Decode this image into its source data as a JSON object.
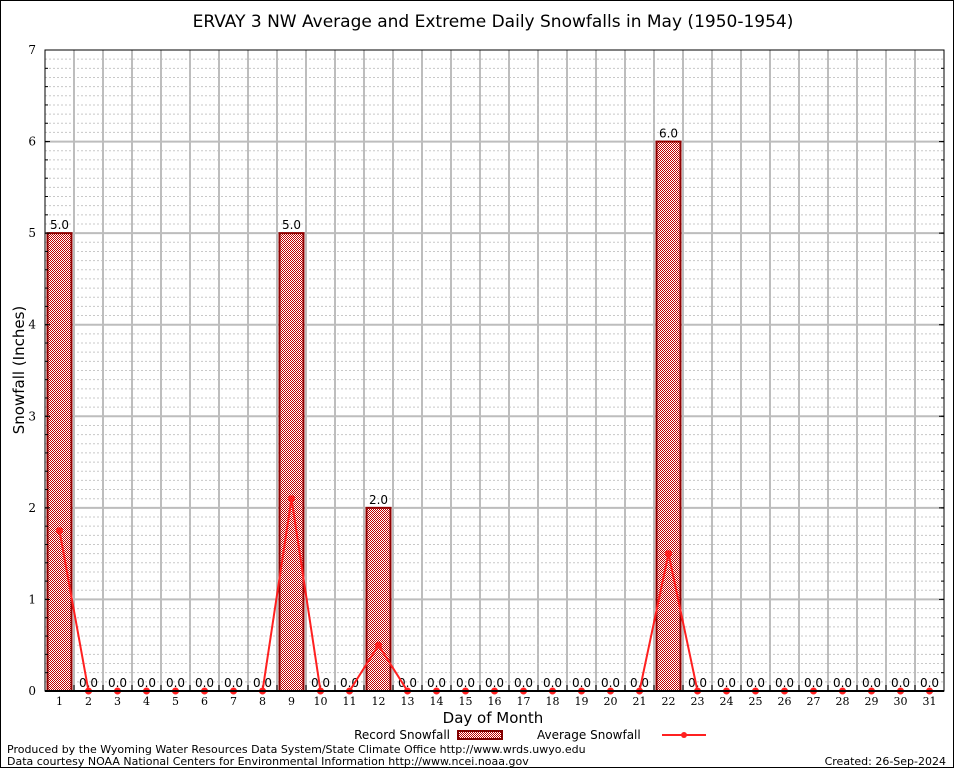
{
  "chart_data": {
    "type": "bar",
    "title": "ERVAY 3 NW Average and Extreme Daily Snowfalls in May (1950-1954)",
    "xlabel": "Day of Month",
    "ylabel": "Snowfall (Inches)",
    "ylim": [
      0,
      7
    ],
    "yticks": [
      "0",
      "1",
      "2",
      "3",
      "4",
      "5",
      "6",
      "7"
    ],
    "categories": [
      "1",
      "2",
      "3",
      "4",
      "5",
      "6",
      "7",
      "8",
      "9",
      "10",
      "11",
      "12",
      "13",
      "14",
      "15",
      "16",
      "17",
      "18",
      "19",
      "20",
      "21",
      "22",
      "23",
      "24",
      "25",
      "26",
      "27",
      "28",
      "29",
      "30",
      "31"
    ],
    "series": [
      {
        "name": "Record Snowfall",
        "type": "bar",
        "color": "#b00000",
        "values": [
          5,
          0,
          0,
          0,
          0,
          0,
          0,
          0,
          5,
          0,
          0,
          2,
          0,
          0,
          0,
          0,
          0,
          0,
          0,
          0,
          0,
          6,
          0,
          0,
          0,
          0,
          0,
          0,
          0,
          0,
          0
        ],
        "labels": [
          "5.0",
          "0.0",
          "0.0",
          "0.0",
          "0.0",
          "0.0",
          "0.0",
          "0.0",
          "5.0",
          "0.0",
          "0.0",
          "2.0",
          "0.0",
          "0.0",
          "0.0",
          "0.0",
          "0.0",
          "0.0",
          "0.0",
          "0.0",
          "0.0",
          "6.0",
          "0.0",
          "0.0",
          "0.0",
          "0.0",
          "0.0",
          "0.0",
          "0.0",
          "0.0",
          "0.0"
        ]
      },
      {
        "name": "Average Snowfall",
        "type": "line",
        "color": "#ff2020",
        "values": [
          1.75,
          0,
          0,
          0,
          0,
          0,
          0,
          0,
          2.1,
          0,
          0,
          0.5,
          0,
          0,
          0,
          0,
          0,
          0,
          0,
          0,
          0,
          1.5,
          0,
          0,
          0,
          0,
          0,
          0,
          0,
          0,
          0
        ]
      }
    ],
    "grid": true,
    "legend": "bottom"
  },
  "footer": {
    "line1": "Produced by the Wyoming Water Resources Data System/State Climate Office http://www.wrds.uwyo.edu",
    "line2": "Data courtesy NOAA National Centers for Environmental Information http://www.ncei.noaa.gov",
    "created": "Created: 26-Sep-2024"
  }
}
